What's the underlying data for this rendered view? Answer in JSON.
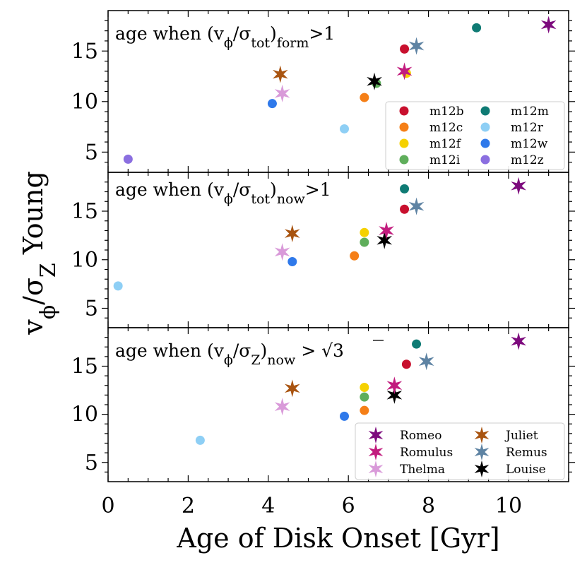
{
  "chart_data": {
    "type": "scatter",
    "xlabel": "Age of Disk Onset [Gyr]",
    "ylabel": "vϕ/σZ Young",
    "xlim": [
      0,
      11.5
    ],
    "ylim": [
      3,
      19
    ],
    "xticks": [
      0,
      2,
      4,
      6,
      8,
      10
    ],
    "yticks": [
      5,
      10,
      15
    ],
    "legend_dots": [
      {
        "name": "m12b",
        "color": "#c8102e"
      },
      {
        "name": "m12m",
        "color": "#0f7b74"
      },
      {
        "name": "m12c",
        "color": "#f57f17"
      },
      {
        "name": "m12r",
        "color": "#8ecff5"
      },
      {
        "name": "m12f",
        "color": "#f5d100"
      },
      {
        "name": "m12w",
        "color": "#2f79ea"
      },
      {
        "name": "m12i",
        "color": "#5fae5b"
      },
      {
        "name": "m12z",
        "color": "#8b6fe0"
      }
    ],
    "legend_stars": [
      {
        "name": "Romeo",
        "color": "#7d0a7d"
      },
      {
        "name": "Juliet",
        "color": "#a95410"
      },
      {
        "name": "Romulus",
        "color": "#c21c7e"
      },
      {
        "name": "Remus",
        "color": "#5e83a3"
      },
      {
        "name": "Thelma",
        "color": "#d99ad9"
      },
      {
        "name": "Louise",
        "color": "#000000"
      }
    ],
    "panels": [
      {
        "points": [
          {
            "name": "m12z",
            "marker": "dot",
            "x": 0.5,
            "y": 4.3
          },
          {
            "name": "m12w",
            "marker": "dot",
            "x": 4.1,
            "y": 9.8
          },
          {
            "name": "m12r",
            "marker": "dot",
            "x": 5.9,
            "y": 7.3
          },
          {
            "name": "m12c",
            "marker": "dot",
            "x": 6.4,
            "y": 10.4
          },
          {
            "name": "m12i",
            "marker": "dot",
            "x": 6.7,
            "y": 11.8
          },
          {
            "name": "m12f",
            "marker": "dot",
            "x": 7.45,
            "y": 12.8
          },
          {
            "name": "m12b",
            "marker": "dot",
            "x": 7.4,
            "y": 15.2
          },
          {
            "name": "m12m",
            "marker": "dot",
            "x": 9.2,
            "y": 17.3
          },
          {
            "name": "Juliet",
            "marker": "star",
            "x": 4.3,
            "y": 12.7
          },
          {
            "name": "Thelma",
            "marker": "star",
            "x": 4.35,
            "y": 10.8
          },
          {
            "name": "Louise",
            "marker": "star",
            "x": 6.65,
            "y": 12.0
          },
          {
            "name": "Romulus",
            "marker": "star",
            "x": 7.4,
            "y": 13.0
          },
          {
            "name": "Remus",
            "marker": "star",
            "x": 7.7,
            "y": 15.5
          },
          {
            "name": "Romeo",
            "marker": "star",
            "x": 11.0,
            "y": 17.6
          }
        ]
      },
      {
        "points": [
          {
            "name": "m12r",
            "marker": "dot",
            "x": 0.25,
            "y": 7.3
          },
          {
            "name": "m12w",
            "marker": "dot",
            "x": 4.6,
            "y": 9.8
          },
          {
            "name": "m12c",
            "marker": "dot",
            "x": 6.15,
            "y": 10.4
          },
          {
            "name": "m12i",
            "marker": "dot",
            "x": 6.4,
            "y": 11.8
          },
          {
            "name": "m12f",
            "marker": "dot",
            "x": 6.4,
            "y": 12.8
          },
          {
            "name": "m12b",
            "marker": "dot",
            "x": 7.4,
            "y": 15.2
          },
          {
            "name": "m12m",
            "marker": "dot",
            "x": 7.4,
            "y": 17.3
          },
          {
            "name": "Thelma",
            "marker": "star",
            "x": 4.35,
            "y": 10.8
          },
          {
            "name": "Juliet",
            "marker": "star",
            "x": 4.6,
            "y": 12.7
          },
          {
            "name": "Louise",
            "marker": "star",
            "x": 6.9,
            "y": 12.0
          },
          {
            "name": "Romulus",
            "marker": "star",
            "x": 6.95,
            "y": 13.0
          },
          {
            "name": "Remus",
            "marker": "star",
            "x": 7.7,
            "y": 15.5
          },
          {
            "name": "Romeo",
            "marker": "star",
            "x": 10.25,
            "y": 17.6
          }
        ]
      },
      {
        "points": [
          {
            "name": "m12r",
            "marker": "dot",
            "x": 2.3,
            "y": 7.3
          },
          {
            "name": "m12w",
            "marker": "dot",
            "x": 5.9,
            "y": 9.8
          },
          {
            "name": "m12c",
            "marker": "dot",
            "x": 6.4,
            "y": 10.4
          },
          {
            "name": "m12i",
            "marker": "dot",
            "x": 6.4,
            "y": 11.8
          },
          {
            "name": "m12f",
            "marker": "dot",
            "x": 6.4,
            "y": 12.8
          },
          {
            "name": "m12b",
            "marker": "dot",
            "x": 7.45,
            "y": 15.2
          },
          {
            "name": "m12m",
            "marker": "dot",
            "x": 7.7,
            "y": 17.3
          },
          {
            "name": "Thelma",
            "marker": "star",
            "x": 4.35,
            "y": 10.8
          },
          {
            "name": "Juliet",
            "marker": "star",
            "x": 4.6,
            "y": 12.7
          },
          {
            "name": "Louise",
            "marker": "star",
            "x": 7.15,
            "y": 12.0
          },
          {
            "name": "Romulus",
            "marker": "star",
            "x": 7.15,
            "y": 13.0
          },
          {
            "name": "Remus",
            "marker": "star",
            "x": 7.95,
            "y": 15.5
          },
          {
            "name": "Romeo",
            "marker": "star",
            "x": 10.25,
            "y": 17.6
          }
        ]
      }
    ]
  }
}
